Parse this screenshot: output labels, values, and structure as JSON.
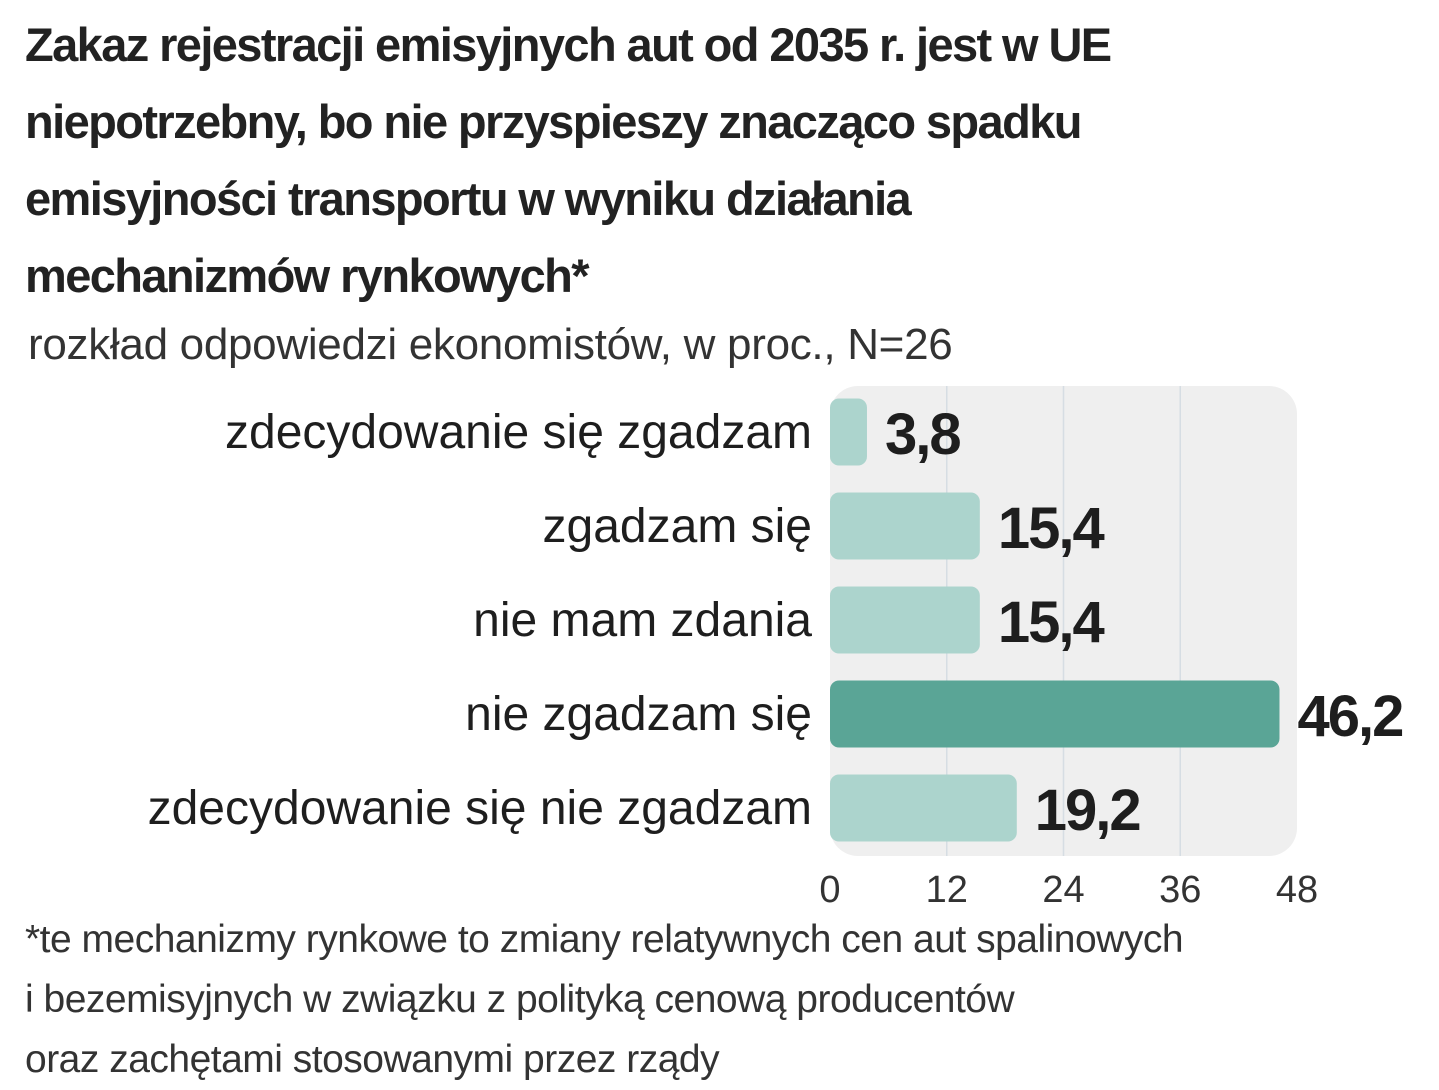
{
  "chart_data": {
    "type": "bar",
    "orientation": "horizontal",
    "title_lines": [
      "Zakaz rejestracji emisyjnych aut od 2035 r. jest w UE",
      "niepotrzebny, bo nie przyspieszy znacząco spadku",
      "emisyjności transportu w wyniku działania",
      "mechanizmów rynkowych*"
    ],
    "subtitle": "rozkład odpowiedzi ekonomistów, w proc., N=26",
    "categories": [
      "zdecydowanie się zgadzam",
      "zgadzam się",
      "nie mam zdania",
      "nie zgadzam się",
      "zdecydowanie się nie zgadzam"
    ],
    "values": [
      3.8,
      15.4,
      15.4,
      46.2,
      19.2
    ],
    "value_labels": [
      "3,8",
      "15,4",
      "15,4",
      "46,2",
      "19,2"
    ],
    "highlight_index": 3,
    "xlim": [
      0,
      48
    ],
    "x_ticks": [
      "0",
      "12",
      "24",
      "36",
      "48"
    ],
    "grid": true,
    "colors": {
      "bar": "#acd4cd",
      "highlight": "#5aa596",
      "panel": "#efefef",
      "grid": "#d6dde3"
    },
    "footnote_lines": [
      "*te mechanizmy rynkowe to zmiany relatywnych cen aut spalinowych",
      "i bezemisyjnych w związku z polityką cenową producentów",
      "oraz zachętami stosowanymi przez rządy"
    ]
  }
}
